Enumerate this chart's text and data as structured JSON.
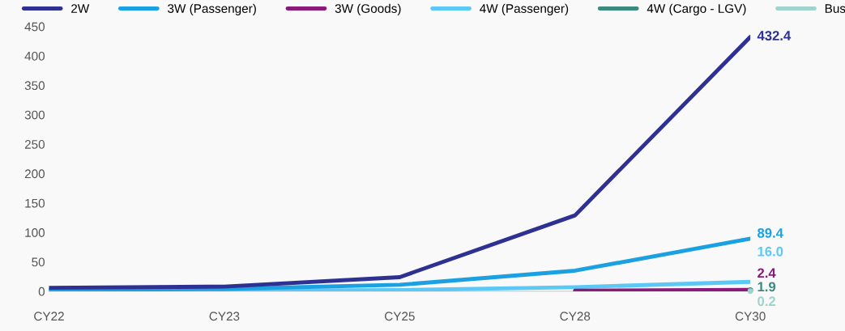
{
  "chart_data": {
    "type": "line",
    "categories": [
      "CY22",
      "CY23",
      "CY25",
      "CY28",
      "CY30"
    ],
    "series": [
      {
        "name": "2W",
        "color": "#2e3192",
        "values": [
          6,
          8,
          24,
          129,
          432.4
        ],
        "value_labels": [
          null,
          null,
          null,
          null,
          "432.4"
        ]
      },
      {
        "name": "3W (Passenger)",
        "color": "#1ba1e2",
        "values": [
          2,
          4,
          11,
          35,
          89.4
        ],
        "value_labels": [
          null,
          null,
          null,
          null,
          "89.4"
        ]
      },
      {
        "name": "3W (Goods)",
        "color": "#8b1a7a",
        "values": [
          null,
          null,
          null,
          1,
          2.4
        ],
        "value_labels": [
          null,
          null,
          null,
          null,
          "2.4"
        ]
      },
      {
        "name": "4W (Passenger)",
        "color": "#5bc8f5",
        "values": [
          0,
          1,
          2,
          7,
          16.0
        ],
        "value_labels": [
          null,
          null,
          null,
          null,
          "16.0"
        ]
      },
      {
        "name": "4W (Cargo - LGV)",
        "color": "#3a8a7e",
        "values": [
          null,
          null,
          null,
          null,
          1.9
        ],
        "value_labels": [
          null,
          null,
          null,
          null,
          "1.9"
        ]
      },
      {
        "name": "Bus",
        "color": "#9fd3cc",
        "values": [
          null,
          null,
          null,
          null,
          0.2
        ],
        "value_labels": [
          null,
          null,
          null,
          null,
          "0.2"
        ]
      }
    ],
    "ylim": [
      0,
      450
    ],
    "yticks": [
      0,
      50,
      100,
      150,
      200,
      250,
      300,
      350,
      400,
      450
    ],
    "grid": false,
    "legend": "top",
    "marker": "none",
    "line_style": "solid"
  }
}
